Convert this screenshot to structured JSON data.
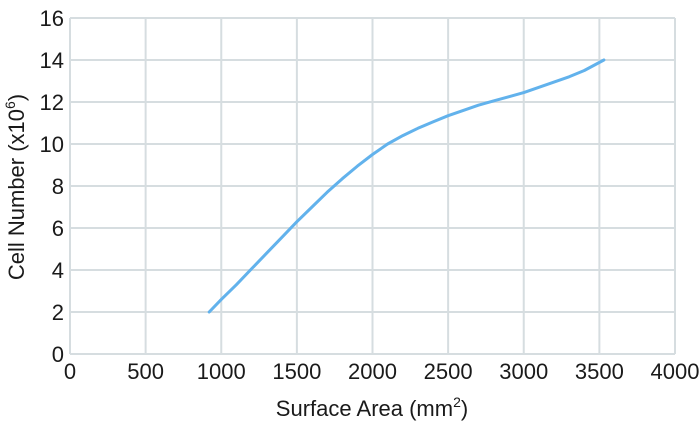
{
  "chart_data": {
    "type": "line",
    "xlabel": "Surface Area (mm",
    "xlabel_sup": "2",
    "xlabel_end": ")",
    "ylabel": "Cell Number (x10",
    "ylabel_sup": "6",
    "ylabel_end": ")",
    "xlim": [
      0,
      4000
    ],
    "ylim": [
      0,
      16
    ],
    "x_ticks": [
      0,
      500,
      1000,
      1500,
      2000,
      2500,
      3000,
      3500,
      4000
    ],
    "y_ticks": [
      0,
      2,
      4,
      6,
      8,
      10,
      12,
      14,
      16
    ],
    "x_tick_labels": [
      "0",
      "500",
      "1000",
      "1500",
      "2000",
      "2500",
      "3000",
      "3500",
      "4000"
    ],
    "y_tick_labels": [
      "0",
      "2",
      "4",
      "6",
      "8",
      "10",
      "12",
      "14",
      "16"
    ],
    "grid": true,
    "line_color": "#62b2ec",
    "grid_color": "#d6dde0",
    "series": [
      {
        "x": [
          920,
          1000,
          1100,
          1200,
          1300,
          1400,
          1500,
          1600,
          1700,
          1800,
          1900,
          2000,
          2100,
          2200,
          2300,
          2400,
          2500,
          2600,
          2700,
          2800,
          2900,
          3000,
          3100,
          3200,
          3300,
          3400,
          3530
        ],
        "y": [
          2.0,
          2.6,
          3.3,
          4.05,
          4.8,
          5.55,
          6.3,
          7.0,
          7.7,
          8.35,
          8.95,
          9.5,
          10.0,
          10.4,
          10.75,
          11.05,
          11.35,
          11.6,
          11.85,
          12.05,
          12.25,
          12.45,
          12.7,
          12.95,
          13.2,
          13.5,
          14.0
        ]
      }
    ]
  }
}
